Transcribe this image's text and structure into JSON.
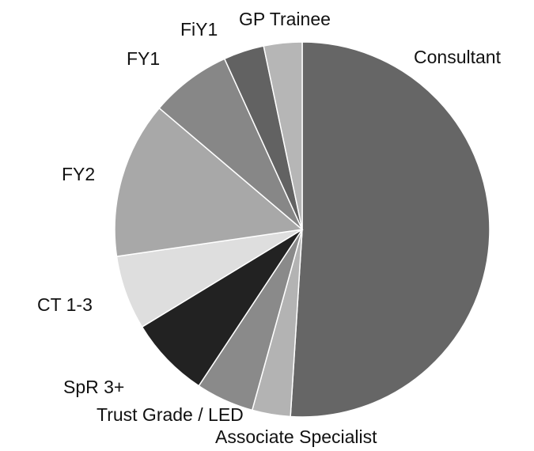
{
  "chart_data": {
    "type": "pie",
    "categories": [
      "Consultant",
      "Associate Specialist",
      "Trust Grade / LED",
      "SpR 3+",
      "CT 1-3",
      "FY2",
      "FY1",
      "FiY1",
      "GP Trainee"
    ],
    "values": [
      51,
      3.3,
      5,
      7,
      6.4,
      13.5,
      7,
      3.5,
      3.3
    ],
    "colors": [
      "#666666",
      "#b3b3b3",
      "#8a8a8a",
      "#222222",
      "#dedede",
      "#a8a8a8",
      "#878787",
      "#626262",
      "#b6b6b6"
    ],
    "start_angle": 0,
    "direction": "clockwise"
  }
}
